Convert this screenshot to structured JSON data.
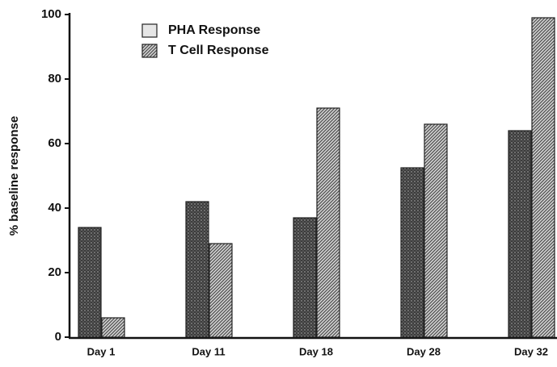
{
  "chart_data": {
    "type": "bar",
    "y_label": "% baseline response",
    "categories": [
      "Day 1",
      "Day 11",
      "Day 18",
      "Day 28",
      "Day 32"
    ],
    "series": [
      {
        "name": "PHA Response",
        "color": "#3c3c3c",
        "values": [
          34,
          42,
          37,
          52.5,
          64
        ]
      },
      {
        "name": "T Cell Response",
        "color": "#555555",
        "values": [
          6,
          29,
          71,
          66,
          99
        ]
      }
    ],
    "ylim": [
      0,
      100
    ],
    "yticks": [
      0,
      20,
      40,
      60,
      80,
      100
    ],
    "legend": "upper left"
  }
}
